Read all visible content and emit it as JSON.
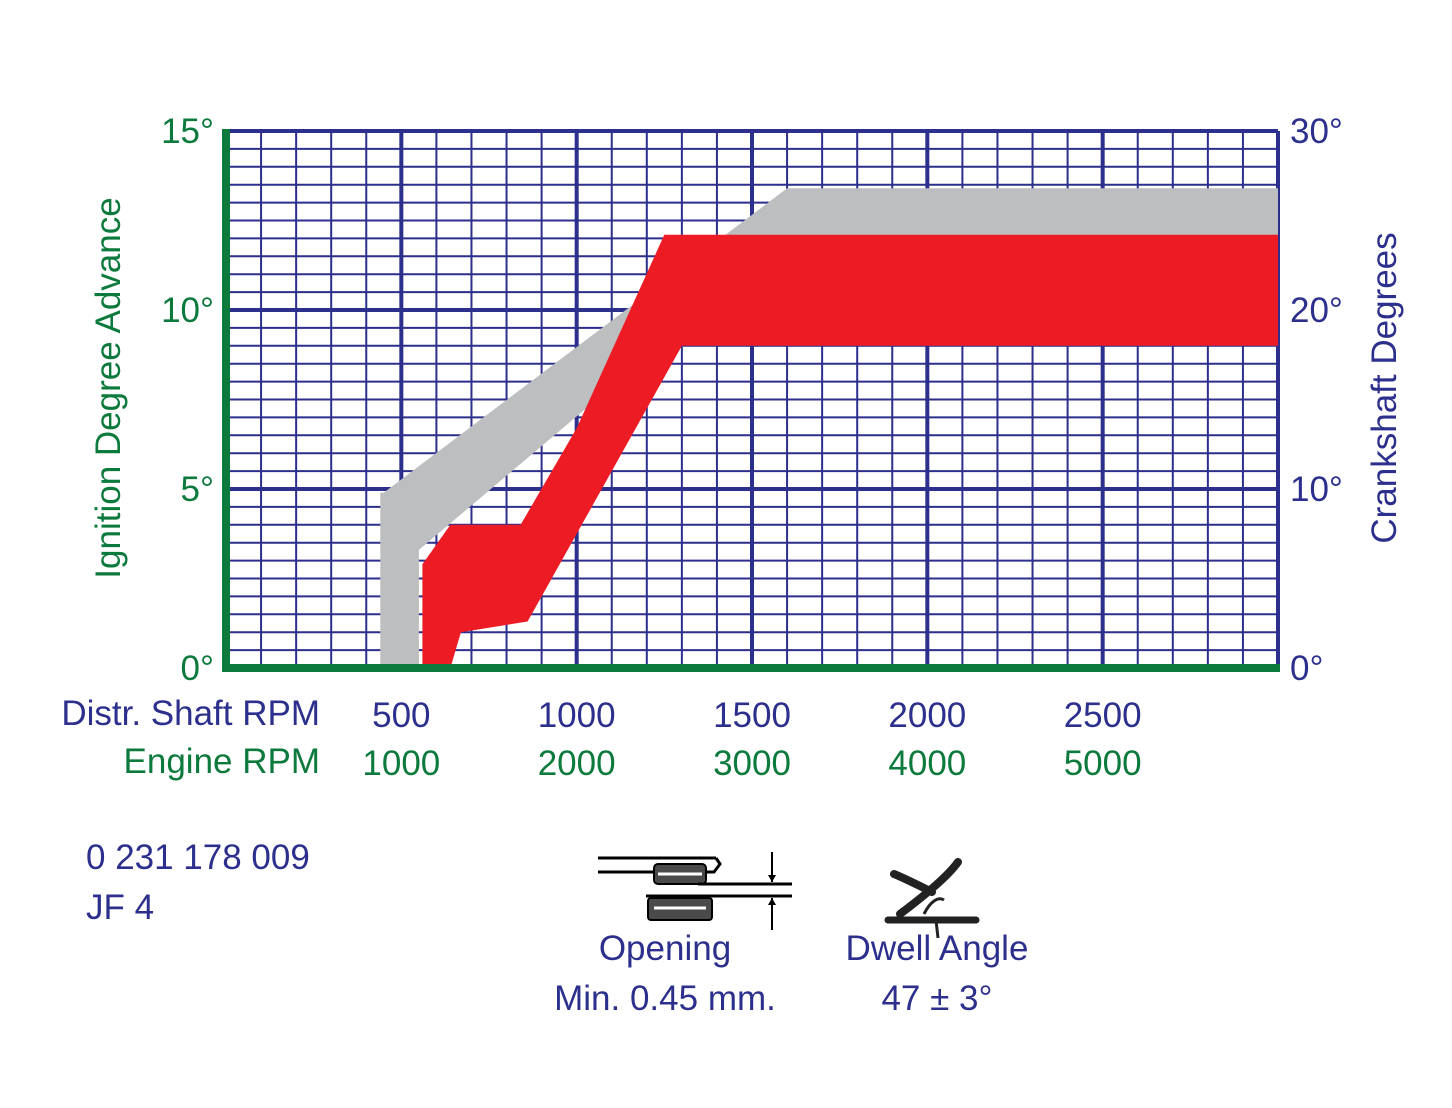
{
  "colors": {
    "grid": "#2c2f8c",
    "left_axis": "#0c7a3c",
    "right_axis": "#2c2f8c",
    "advance_band": "#ed1c24",
    "reference_band": "#bcbec0",
    "text_navy": "#2c2f8c",
    "text_green": "#0c7a3c"
  },
  "chart_data": {
    "type": "area",
    "title": "",
    "ylabel_left": "Ignition Degree Advance",
    "ylabel_right": "Crankshaft Degrees",
    "left_ticks": [
      "15°",
      "10°",
      "5°",
      "0°"
    ],
    "right_ticks": [
      "30°",
      "20°",
      "10°",
      "0°"
    ],
    "ylim_left": [
      0,
      15
    ],
    "ylim_right": [
      0,
      30
    ],
    "xlim_distributor_rpm": [
      0,
      3000
    ],
    "x_row1_label": "Distr. Shaft RPM",
    "x_row1_ticks": [
      "500",
      "1000",
      "1500",
      "2000",
      "2500"
    ],
    "x_row2_label": "Engine RPM",
    "x_row2_ticks": [
      "1000",
      "2000",
      "3000",
      "4000",
      "5000"
    ],
    "grid": true,
    "series": [
      {
        "band": "reference",
        "upper": [
          [
            440,
            4.9
          ],
          [
            450,
            4.9
          ],
          [
            1600,
            13.4
          ],
          [
            3000,
            13.4
          ]
        ],
        "lower": [
          [
            440,
            0
          ],
          [
            550,
            0
          ],
          [
            550,
            3.3
          ],
          [
            1600,
            12.0
          ],
          [
            3000,
            12.0
          ]
        ]
      },
      {
        "band": "advance",
        "upper": [
          [
            430,
            0
          ],
          [
            560,
            0
          ],
          [
            560,
            2.9
          ],
          [
            640,
            4.0
          ],
          [
            840,
            4.0
          ],
          [
            1000,
            6.7
          ],
          [
            1250,
            12.1
          ],
          [
            3000,
            12.1
          ]
        ],
        "lower": [
          [
            640,
            0
          ],
          [
            670,
            1.0
          ],
          [
            860,
            1.3
          ],
          [
            1300,
            9.0
          ],
          [
            3000,
            9.0
          ]
        ]
      }
    ]
  },
  "part": {
    "number": "0 231 178 009",
    "code": "JF 4"
  },
  "specs": {
    "opening_label": "Opening",
    "opening_value": "Min. 0.45 mm.",
    "dwell_label": "Dwell Angle",
    "dwell_value": "47 ± 3°"
  },
  "icons": {
    "opening": "breaker-points-gap-icon",
    "dwell": "dwell-angle-icon"
  }
}
